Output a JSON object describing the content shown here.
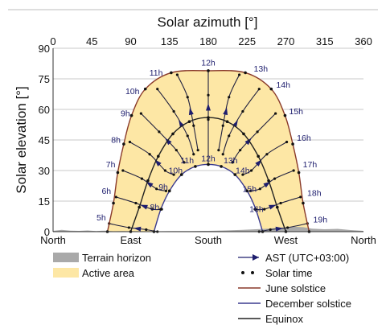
{
  "chart_data": {
    "type": "line",
    "title": "",
    "xlabel": "Solar azimuth [°]",
    "ylabel": "Solar elevation [°]",
    "xlim": [
      0,
      360
    ],
    "ylim": [
      0,
      90
    ],
    "x_ticks": [
      0,
      45,
      90,
      135,
      180,
      225,
      270,
      315,
      360
    ],
    "y_ticks": [
      0,
      15,
      30,
      45,
      60,
      75,
      90
    ],
    "x_ticks_position": "top",
    "direction_labels": [
      {
        "azimuth": 0,
        "label": "North"
      },
      {
        "azimuth": 90,
        "label": "East"
      },
      {
        "azimuth": 180,
        "label": "South"
      },
      {
        "azimuth": 270,
        "label": "West"
      },
      {
        "azimuth": 360,
        "label": "North"
      }
    ],
    "grid": true,
    "colors": {
      "active_area": "#fde7a5",
      "terrain": "#a9a9a9",
      "june": "#8a3a2a",
      "december": "#3b3b8f",
      "equinox": "#222222",
      "analemma": "#1f1f3f",
      "grid": "#c8c8c8"
    },
    "terrain_horizon": [
      [
        0,
        0.4
      ],
      [
        10,
        0.9
      ],
      [
        20,
        0.5
      ],
      [
        30,
        0.4
      ],
      [
        40,
        0.6
      ],
      [
        50,
        0.3
      ],
      [
        60,
        0.5
      ],
      [
        70,
        0.2
      ],
      [
        80,
        0.3
      ],
      [
        100,
        0.2
      ],
      [
        120,
        0.2
      ],
      [
        140,
        0.3
      ],
      [
        160,
        0.3
      ],
      [
        180,
        0.4
      ],
      [
        200,
        0.6
      ],
      [
        220,
        0.9
      ],
      [
        235,
        1.2
      ],
      [
        250,
        1.5
      ],
      [
        260,
        1.8
      ],
      [
        270,
        2.1
      ],
      [
        280,
        2.4
      ],
      [
        290,
        2.2
      ],
      [
        300,
        1.5
      ],
      [
        315,
        1.2
      ],
      [
        330,
        1.4
      ],
      [
        345,
        0.8
      ],
      [
        360,
        0.4
      ]
    ],
    "series": [
      {
        "name": "June solstice",
        "points": [
          [
            63,
            0
          ],
          [
            70,
            14
          ],
          [
            75,
            29
          ],
          [
            82,
            43
          ],
          [
            91,
            57
          ],
          [
            107,
            70
          ],
          [
            137,
            78
          ],
          [
            180,
            79
          ],
          [
            223,
            78
          ],
          [
            253,
            70
          ],
          [
            269,
            57
          ],
          [
            278,
            43
          ],
          [
            285,
            29
          ],
          [
            290,
            14
          ],
          [
            297,
            0
          ]
        ]
      },
      {
        "name": "Equinox",
        "points": [
          [
            90,
            0
          ],
          [
            100,
            12
          ],
          [
            110,
            25
          ],
          [
            122,
            37
          ],
          [
            139,
            48
          ],
          [
            158,
            54
          ],
          [
            180,
            56
          ],
          [
            202,
            54
          ],
          [
            221,
            48
          ],
          [
            238,
            37
          ],
          [
            250,
            25
          ],
          [
            260,
            12
          ],
          [
            270,
            0
          ]
        ]
      },
      {
        "name": "December solstice",
        "points": [
          [
            117,
            0
          ],
          [
            125,
            11
          ],
          [
            135,
            20
          ],
          [
            149,
            28
          ],
          [
            165,
            32
          ],
          [
            180,
            33
          ],
          [
            195,
            32
          ],
          [
            211,
            28
          ],
          [
            225,
            20
          ],
          [
            235,
            11
          ],
          [
            243,
            0
          ]
        ]
      }
    ],
    "hour_labels": [
      {
        "label": "5h",
        "x": 65,
        "y": 4
      },
      {
        "label": "6h",
        "x": 71,
        "y": 17
      },
      {
        "label": "7h",
        "x": 76,
        "y": 30
      },
      {
        "label": "8h",
        "x": 82,
        "y": 42
      },
      {
        "label": "9h",
        "x": 93,
        "y": 55
      },
      {
        "label": "10h",
        "x": 104,
        "y": 66
      },
      {
        "label": "11h",
        "x": 131,
        "y": 75
      },
      {
        "label": "12h",
        "x": 180,
        "y": 80
      },
      {
        "label": "13h",
        "x": 229,
        "y": 77
      },
      {
        "label": "14h",
        "x": 255,
        "y": 69
      },
      {
        "label": "15h",
        "x": 270,
        "y": 56
      },
      {
        "label": "16h",
        "x": 279,
        "y": 43
      },
      {
        "label": "17h",
        "x": 286,
        "y": 30
      },
      {
        "label": "18h",
        "x": 291,
        "y": 16
      },
      {
        "label": "19h",
        "x": 298,
        "y": 3
      },
      {
        "label": "8h",
        "x": 127,
        "y": 9
      },
      {
        "label": "9h",
        "x": 137,
        "y": 19
      },
      {
        "label": "10h",
        "x": 154,
        "y": 27
      },
      {
        "label": "11h",
        "x": 167,
        "y": 32
      },
      {
        "label": "12h",
        "x": 180,
        "y": 33
      },
      {
        "label": "13h",
        "x": 194,
        "y": 32
      },
      {
        "label": "14h",
        "x": 208,
        "y": 27
      },
      {
        "label": "15h",
        "x": 216,
        "y": 18
      },
      {
        "label": "16h",
        "x": 224,
        "y": 8
      }
    ],
    "analemmas": [
      [
        [
          65,
          4
        ],
        [
          88,
          2
        ],
        [
          108,
          1
        ],
        [
          121,
          0
        ]
      ],
      [
        [
          73,
          17
        ],
        [
          96,
          14
        ],
        [
          115,
          11
        ],
        [
          126,
          11
        ]
      ],
      [
        [
          81,
          30
        ],
        [
          103,
          26
        ],
        [
          120,
          21
        ],
        [
          131,
          20
        ]
      ],
      [
        [
          89,
          44
        ],
        [
          112,
          38
        ],
        [
          130,
          30
        ],
        [
          140,
          28
        ]
      ],
      [
        [
          102,
          58
        ],
        [
          123,
          49
        ],
        [
          143,
          40
        ],
        [
          152,
          34
        ]
      ],
      [
        [
          121,
          70
        ],
        [
          140,
          59
        ],
        [
          156,
          47
        ],
        [
          163,
          38
        ]
      ],
      [
        [
          144,
          77
        ],
        [
          156,
          66
        ],
        [
          163,
          52
        ],
        [
          168,
          40
        ]
      ],
      [
        [
          180,
          79
        ],
        [
          180,
          67
        ],
        [
          180,
          55
        ],
        [
          180,
          33
        ]
      ],
      [
        [
          216,
          77
        ],
        [
          204,
          66
        ],
        [
          197,
          52
        ],
        [
          192,
          40
        ]
      ],
      [
        [
          239,
          70
        ],
        [
          220,
          59
        ],
        [
          204,
          47
        ],
        [
          197,
          38
        ]
      ],
      [
        [
          258,
          58
        ],
        [
          237,
          49
        ],
        [
          217,
          40
        ],
        [
          208,
          34
        ]
      ],
      [
        [
          271,
          44
        ],
        [
          248,
          38
        ],
        [
          230,
          30
        ],
        [
          220,
          28
        ]
      ],
      [
        [
          279,
          30
        ],
        [
          257,
          26
        ],
        [
          240,
          21
        ],
        [
          229,
          20
        ]
      ],
      [
        [
          287,
          17
        ],
        [
          264,
          14
        ],
        [
          245,
          11
        ],
        [
          234,
          11
        ]
      ],
      [
        [
          295,
          4
        ],
        [
          272,
          2
        ],
        [
          252,
          1
        ],
        [
          239,
          0
        ]
      ]
    ],
    "legend": {
      "position": "bottom",
      "left_items": [
        {
          "label": "Terrain horizon",
          "kind": "patch",
          "color": "#a9a9a9"
        },
        {
          "label": "Active area",
          "kind": "patch",
          "color": "#fde7a5"
        }
      ],
      "right_items": [
        {
          "label": "AST (UTC+03:00)",
          "kind": "arrow",
          "color": "#1e1e6e"
        },
        {
          "label": "Solar time",
          "kind": "dots",
          "color": "#111111"
        },
        {
          "label": "June solstice",
          "kind": "line",
          "color": "#8a3a2a"
        },
        {
          "label": "December solstice",
          "kind": "line",
          "color": "#3b3b8f"
        },
        {
          "label": "Equinox",
          "kind": "line",
          "color": "#222222"
        }
      ]
    }
  }
}
